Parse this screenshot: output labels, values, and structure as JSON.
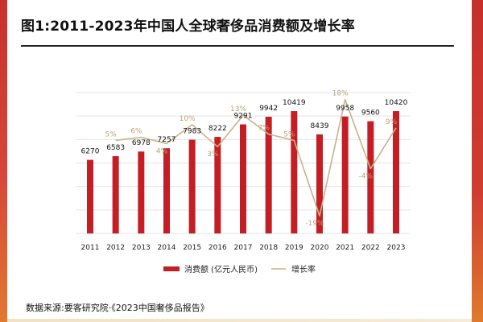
{
  "title": "图1:2011-2023年中国人全球奢侈品消费额及增长率",
  "source": "数据来源:要客研究院·《2023中国奢侈品报告》",
  "colors": {
    "bar": "#c41e24",
    "line": "#c8b28a",
    "growth_label": "#bfa26f",
    "value_label": "#111111",
    "grid": "#e4e4e4"
  },
  "chart_data": {
    "type": "bar",
    "title": "图1:2011-2023年中国人全球奢侈品消费额及增长率",
    "xlabel": "",
    "ylabel": "",
    "grid": true,
    "legend_placement": "bottom-center",
    "categories": [
      "2011",
      "2012",
      "2013",
      "2014",
      "2015",
      "2016",
      "2017",
      "2018",
      "2019",
      "2020",
      "2021",
      "2022",
      "2023"
    ],
    "ylim": [
      0,
      12000
    ],
    "y2lim": [
      -21,
      22
    ],
    "series": [
      {
        "name": "消费额 (亿元人民币)",
        "type": "bar",
        "values": [
          6270,
          6583,
          6978,
          7257,
          7983,
          8222,
          9291,
          9942,
          10419,
          8439,
          9958,
          9560,
          10420
        ],
        "labels": [
          "6270",
          "6583",
          "6978",
          "7257",
          "7983",
          "8222",
          "9291",
          "9942",
          "10419",
          "8439",
          "9958",
          "9560",
          "10420"
        ]
      },
      {
        "name": "增长率",
        "type": "line",
        "values": [
          null,
          5,
          6,
          4,
          10,
          3,
          13,
          7,
          5,
          -19,
          18,
          -4,
          9
        ],
        "labels": [
          "",
          "5%",
          "6%",
          "4%",
          "10%",
          "3%",
          "13%",
          "7%",
          "5%",
          "-19%",
          "18%",
          "-4%",
          "9%"
        ]
      }
    ]
  }
}
